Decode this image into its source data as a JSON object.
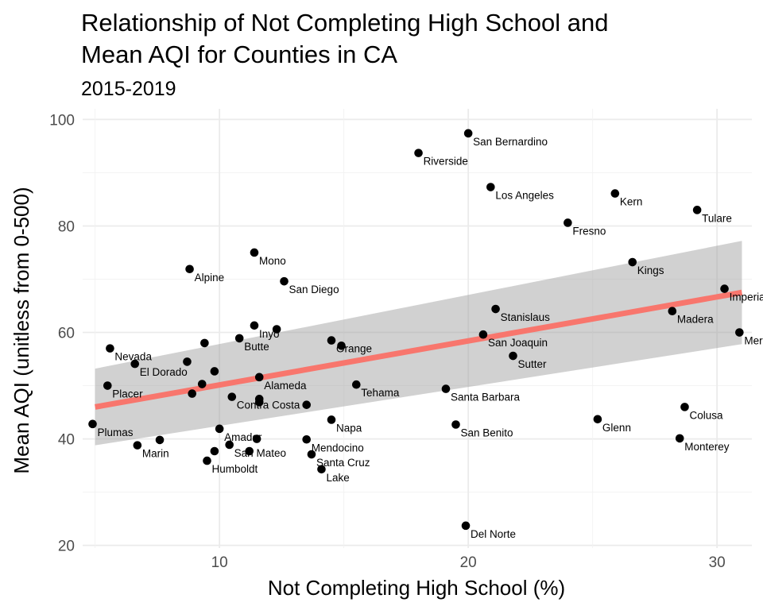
{
  "chart_data": {
    "type": "scatter",
    "title": [
      "Relationship of Not Completing High School and",
      "Mean AQI for Counties in CA"
    ],
    "subtitle": "2015-2019",
    "xlabel": "Not Completing High School (%)",
    "ylabel": "Mean AQI (unitless from 0-500)",
    "xlim": [
      4.5,
      31.4
    ],
    "ylim": [
      19.5,
      102
    ],
    "xticks": [
      10,
      20,
      30
    ],
    "yticks": [
      20,
      40,
      60,
      80,
      100
    ],
    "grid": true,
    "theme": "minimal",
    "point_color": "#000000",
    "trend": {
      "method": "linear",
      "color": "#F8766D",
      "band_color": "#999999",
      "x": [
        5,
        31
      ],
      "y": [
        46.0,
        67.5
      ],
      "band_lower": [
        38.8,
        57.8
      ],
      "band_upper": [
        53.2,
        77.2
      ]
    },
    "points": [
      {
        "label": "San Bernardino",
        "x": 20.0,
        "y": 97.4
      },
      {
        "label": "Riverside",
        "x": 18.0,
        "y": 93.7
      },
      {
        "label": "Los Angeles",
        "x": 20.9,
        "y": 87.3
      },
      {
        "label": "Kern",
        "x": 25.9,
        "y": 86.1
      },
      {
        "label": "Tulare",
        "x": 29.2,
        "y": 83.0
      },
      {
        "label": "Fresno",
        "x": 24.0,
        "y": 80.6
      },
      {
        "label": "Mono",
        "x": 11.4,
        "y": 75.0
      },
      {
        "label": "Kings",
        "x": 26.6,
        "y": 73.2
      },
      {
        "label": "Alpine",
        "x": 8.8,
        "y": 71.9
      },
      {
        "label": "San Diego",
        "x": 12.6,
        "y": 69.6
      },
      {
        "label": "Imperial",
        "x": 30.3,
        "y": 68.2
      },
      {
        "label": "Stanislaus",
        "x": 21.1,
        "y": 64.4
      },
      {
        "label": "Madera",
        "x": 28.2,
        "y": 64.0
      },
      {
        "label": "Inyo",
        "x": 11.4,
        "y": 61.3
      },
      {
        "label": "",
        "x": 12.3,
        "y": 60.6
      },
      {
        "label": "Merced",
        "x": 30.9,
        "y": 60.0
      },
      {
        "label": "San Joaquin",
        "x": 20.6,
        "y": 59.6
      },
      {
        "label": "Butte",
        "x": 10.8,
        "y": 58.9
      },
      {
        "label": "Orange",
        "x": 14.5,
        "y": 58.5
      },
      {
        "label": "",
        "x": 9.4,
        "y": 58.0
      },
      {
        "label": "",
        "x": 14.9,
        "y": 57.5
      },
      {
        "label": "Nevada",
        "x": 5.6,
        "y": 57.0
      },
      {
        "label": "Sutter",
        "x": 21.8,
        "y": 55.6
      },
      {
        "label": "",
        "x": 8.7,
        "y": 54.5
      },
      {
        "label": "El Dorado",
        "x": 6.6,
        "y": 54.1
      },
      {
        "label": "",
        "x": 9.8,
        "y": 52.7
      },
      {
        "label": "Alameda",
        "x": 11.6,
        "y": 51.6
      },
      {
        "label": "",
        "x": 9.3,
        "y": 50.3
      },
      {
        "label": "Tehama",
        "x": 15.5,
        "y": 50.2
      },
      {
        "label": "Placer",
        "x": 5.5,
        "y": 50.0
      },
      {
        "label": "Santa Barbara",
        "x": 19.1,
        "y": 49.4
      },
      {
        "label": "",
        "x": 8.9,
        "y": 48.5
      },
      {
        "label": "Contra Costa",
        "x": 10.5,
        "y": 47.9
      },
      {
        "label": "",
        "x": 11.6,
        "y": 47.5
      },
      {
        "label": "",
        "x": 11.6,
        "y": 46.9
      },
      {
        "label": "",
        "x": 13.5,
        "y": 46.4
      },
      {
        "label": "Colusa",
        "x": 28.7,
        "y": 46.0
      },
      {
        "label": "Glenn",
        "x": 25.2,
        "y": 43.7
      },
      {
        "label": "Napa",
        "x": 14.5,
        "y": 43.6
      },
      {
        "label": "Plumas",
        "x": 4.9,
        "y": 42.8
      },
      {
        "label": "San Benito",
        "x": 19.5,
        "y": 42.7
      },
      {
        "label": "Amador",
        "x": 10.0,
        "y": 41.9
      },
      {
        "label": "Monterey",
        "x": 28.5,
        "y": 40.1
      },
      {
        "label": "",
        "x": 11.5,
        "y": 40.0
      },
      {
        "label": "Mendocino",
        "x": 13.5,
        "y": 39.9
      },
      {
        "label": "",
        "x": 7.6,
        "y": 39.8
      },
      {
        "label": "San Mateo",
        "x": 10.4,
        "y": 38.9
      },
      {
        "label": "Marin",
        "x": 6.7,
        "y": 38.8
      },
      {
        "label": "",
        "x": 9.8,
        "y": 37.7
      },
      {
        "label": "",
        "x": 11.2,
        "y": 37.7
      },
      {
        "label": "Santa Cruz",
        "x": 13.7,
        "y": 37.1
      },
      {
        "label": "Humboldt",
        "x": 9.5,
        "y": 35.9
      },
      {
        "label": "Lake",
        "x": 14.1,
        "y": 34.3
      },
      {
        "label": "Del Norte",
        "x": 19.9,
        "y": 23.7
      }
    ]
  }
}
